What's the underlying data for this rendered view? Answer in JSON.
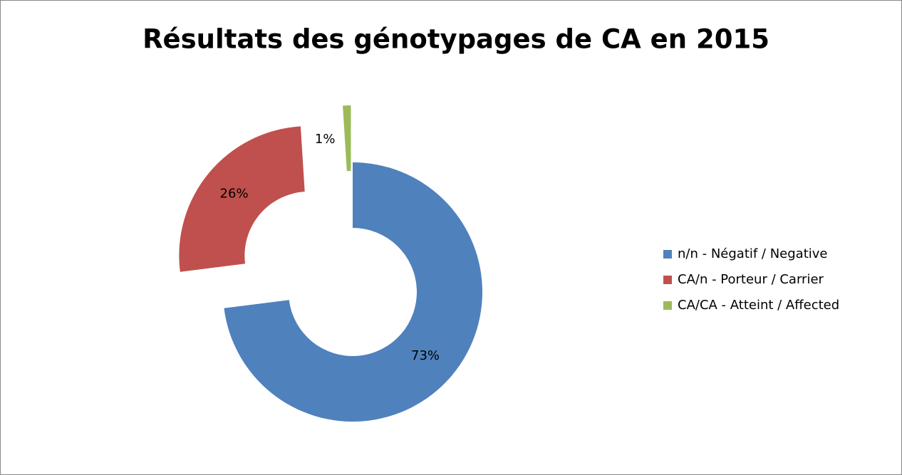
{
  "chart_data": {
    "type": "donut",
    "title": "Résultats des génotypages de CA en 2015",
    "categories": [
      "n/n - Négatif / Negative",
      "CA/n - Porteur / Carrier",
      "CA/CA - Atteint / Affected"
    ],
    "values": [
      73,
      26,
      1
    ],
    "value_labels": [
      "73%",
      "26%",
      "1%"
    ],
    "colors": [
      "#4f81bd",
      "#c0504d",
      "#9bbb59"
    ],
    "legend": "right"
  }
}
